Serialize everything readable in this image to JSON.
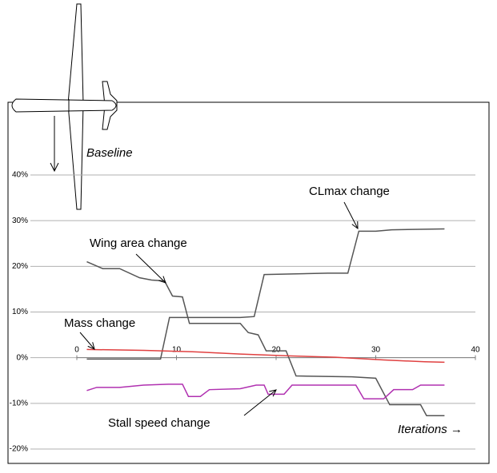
{
  "chart_data": {
    "type": "line",
    "xlim": [
      0,
      40
    ],
    "xticks": [
      0,
      10,
      20,
      30,
      40
    ],
    "ylim": [
      -20,
      40
    ],
    "yticks": [
      {
        "value": -20,
        "label": "-20%"
      },
      {
        "value": -10,
        "label": "-10%"
      },
      {
        "value": 0,
        "label": "0%"
      },
      {
        "value": 10,
        "label": "10%"
      },
      {
        "value": 20,
        "label": "20%"
      },
      {
        "value": 30,
        "label": "30%"
      },
      {
        "value": 40,
        "label": "40%"
      }
    ],
    "grid": true,
    "x_label": "Iterations →",
    "baseline_label": "Baseline",
    "series": [
      {
        "name": "Wing area change",
        "color": "#555555",
        "x": [
          1,
          2.6,
          4.3,
          6.3,
          7.5,
          8.8,
          9.6,
          10.6,
          11.3,
          16.4,
          17.2,
          18.2,
          19,
          21,
          22,
          27.6,
          30,
          31.4,
          34.5,
          35.1,
          36.9
        ],
        "values": [
          21,
          19.5,
          19.5,
          17.5,
          17,
          16.8,
          13.5,
          13.3,
          7.5,
          7.5,
          5.5,
          5,
          1.5,
          1.5,
          -4,
          -4.2,
          -4.5,
          -10.3,
          -10.3,
          -12.7,
          -12.7
        ]
      },
      {
        "name": "CLmax change",
        "color": "#555555",
        "x": [
          1,
          8.4,
          9.3,
          16.4,
          17.8,
          18.8,
          25.2,
          27.2,
          28.3,
          30,
          31.6,
          36.9
        ],
        "values": [
          -0.3,
          -0.3,
          8.8,
          8.8,
          9,
          18.2,
          18.5,
          18.5,
          27.7,
          27.7,
          28,
          28.2
        ]
      },
      {
        "name": "Mass change",
        "color": "#e04040",
        "x": [
          1,
          6.7,
          11.6,
          16.4,
          21.2,
          26,
          30.8,
          34.9,
          36.9
        ],
        "values": [
          1.8,
          1.6,
          1.3,
          0.8,
          0.4,
          0.1,
          -0.5,
          -0.9,
          -1
        ]
      },
      {
        "name": "Stall speed change",
        "color": "#b030b0",
        "x": [
          1,
          2,
          4.3,
          6.7,
          9.2,
          10.6,
          11.2,
          12.4,
          13.3,
          16.4,
          18,
          18.8,
          19.2,
          20.8,
          21.6,
          24.4,
          28,
          28.8,
          30.8,
          31.8,
          33.7,
          34.5,
          36.9
        ],
        "values": [
          -7.2,
          -6.5,
          -6.5,
          -6,
          -5.8,
          -5.8,
          -8.5,
          -8.5,
          -7,
          -6.8,
          -6,
          -6,
          -8,
          -8,
          -6,
          -6,
          -6,
          -9,
          -9,
          -7,
          -7,
          -6,
          -6
        ]
      }
    ]
  }
}
